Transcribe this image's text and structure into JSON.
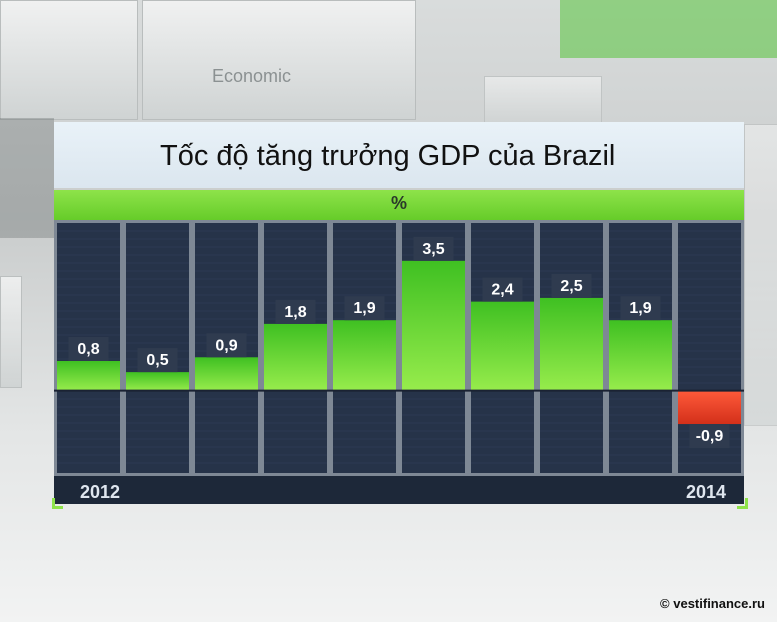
{
  "header": {
    "title": "Tốc độ tăng trưởng GDP của Brazil",
    "unit": "%"
  },
  "background": {
    "panel_word": "Economic"
  },
  "footer": {
    "year_start": "2012",
    "year_end": "2014",
    "watermark": "© vestifinance.ru"
  },
  "colors": {
    "positive": "#66d62e",
    "negative": "#e53a1e",
    "panel": "#263349",
    "label_box": "#2f3b4f"
  },
  "chart_data": {
    "type": "bar",
    "title": "Tốc độ tăng trưởng GDP của Brazil",
    "ylabel": "%",
    "x_tick_labels": [
      "2012",
      "2014"
    ],
    "values": [
      0.8,
      0.5,
      0.9,
      1.8,
      1.9,
      3.5,
      2.4,
      2.5,
      1.9,
      -0.9
    ],
    "value_labels": [
      "0,8",
      "0,5",
      "0,9",
      "1,8",
      "1,9",
      "3,5",
      "2,4",
      "2,5",
      "1,9",
      "-0,9"
    ],
    "ylim": [
      -2.3,
      4.6
    ],
    "grid": false,
    "legend": "none"
  }
}
